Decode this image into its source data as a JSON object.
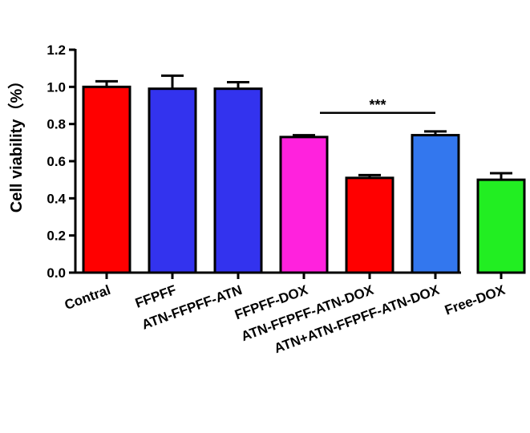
{
  "chart_data": {
    "type": "bar",
    "categories": [
      "Contral",
      "FFPFF",
      "ATN-FFPFF-ATN",
      "FFPFF-DOX",
      "ATN-FFPFF-ATN-DOX",
      "ATN+ATN-FFPFF-ATN-DOX",
      "Free-DOX"
    ],
    "values": [
      1.0,
      0.99,
      0.99,
      0.73,
      0.51,
      0.74,
      0.5
    ],
    "errors": [
      0.03,
      0.07,
      0.035,
      0.01,
      0.015,
      0.02,
      0.035
    ],
    "colors": [
      "#ff0000",
      "#3333ee",
      "#3333ee",
      "#ff22dd",
      "#ff0000",
      "#3377ee",
      "#22ee22"
    ],
    "ylabel": "Cell viability（%）",
    "ylim": [
      0,
      1.2
    ],
    "yticks": [
      "0.0",
      "0.2",
      "0.4",
      "0.6",
      "0.8",
      "1.0",
      "1.2"
    ],
    "significance": {
      "label": "***",
      "between": [
        "FFPFF-DOX",
        "ATN+ATN-FFPFF-ATN-DOX"
      ],
      "y": 0.86
    }
  }
}
